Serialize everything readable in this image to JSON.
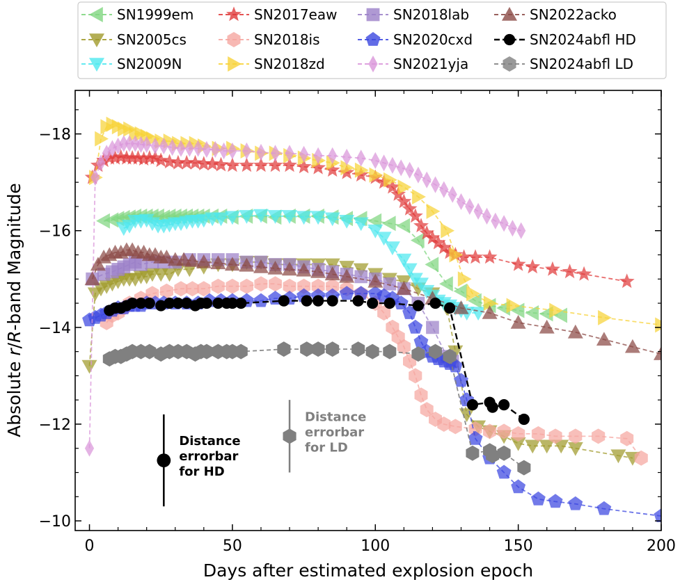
{
  "chart_data": {
    "type": "scatter",
    "title": "",
    "xlabel": "Days after estimated explosion epoch",
    "ylabel_parts": [
      "Absolute ",
      "r",
      "/",
      "R",
      "-band Magnitude"
    ],
    "xlim": [
      -5,
      200
    ],
    "ylim": [
      -9.8,
      -18.9
    ],
    "y_inverted": true,
    "grid": false,
    "legend_placement": "top (above plot, 4 columns)",
    "x_ticks": [
      0,
      50,
      100,
      150,
      200
    ],
    "x_tick_labels": [
      "0",
      "50",
      "100",
      "150",
      "200"
    ],
    "y_ticks": [
      -10,
      -12,
      -14,
      -16,
      -18
    ],
    "y_tick_labels": [
      "−10",
      "−12",
      "−14",
      "−16",
      "−18"
    ],
    "series": [
      {
        "name": "SN1999em",
        "color": "#7fd67f",
        "marker": "triangle-left",
        "x": [
          5,
          8,
          10,
          12,
          14,
          16,
          18,
          20,
          22,
          24,
          26,
          28,
          30,
          32,
          34,
          36,
          38,
          40,
          43,
          46,
          50,
          55,
          60,
          65,
          70,
          75,
          80,
          85,
          90,
          95,
          100,
          105,
          110,
          115,
          120,
          125,
          130,
          135,
          140,
          145,
          150,
          155,
          160,
          165
        ],
        "y": [
          -16.2,
          -16.22,
          -16.25,
          -16.27,
          -16.28,
          -16.3,
          -16.3,
          -16.3,
          -16.3,
          -16.3,
          -16.28,
          -16.3,
          -16.3,
          -16.3,
          -16.3,
          -16.3,
          -16.3,
          -16.3,
          -16.3,
          -16.3,
          -16.28,
          -16.3,
          -16.3,
          -16.28,
          -16.3,
          -16.3,
          -16.3,
          -16.28,
          -16.25,
          -16.25,
          -16.2,
          -16.15,
          -16.1,
          -15.8,
          -15.3,
          -14.9,
          -14.75,
          -14.55,
          -14.45,
          -14.4,
          -14.35,
          -14.3,
          -14.28,
          -14.25
        ]
      },
      {
        "name": "SN2005cs",
        "color": "#a09a2b",
        "marker": "triangle-down",
        "x": [
          0,
          2,
          4,
          6,
          8,
          10,
          12,
          14,
          16,
          18,
          20,
          22,
          25,
          28,
          31,
          35,
          40,
          45,
          50,
          55,
          60,
          65,
          70,
          75,
          80,
          85,
          90,
          95,
          100,
          105,
          110,
          115,
          120,
          125,
          128,
          132,
          136,
          140,
          145,
          150,
          155,
          160,
          165,
          170,
          185,
          190
        ],
        "y": [
          -13.2,
          -14.7,
          -14.8,
          -14.85,
          -14.9,
          -14.95,
          -15.0,
          -15.0,
          -15.0,
          -15.05,
          -15.05,
          -15.1,
          -15.1,
          -15.1,
          -15.2,
          -15.2,
          -15.25,
          -15.3,
          -15.3,
          -15.35,
          -15.35,
          -15.3,
          -15.3,
          -15.3,
          -15.3,
          -15.3,
          -15.25,
          -15.2,
          -15.1,
          -15.0,
          -14.95,
          -14.8,
          -14.7,
          -14.4,
          -13.5,
          -12.2,
          -11.95,
          -11.85,
          -11.75,
          -11.6,
          -11.55,
          -11.55,
          -11.55,
          -11.5,
          -11.35,
          -11.3
        ]
      },
      {
        "name": "SN2009N",
        "color": "#4de8ef",
        "marker": "triangle-down",
        "x": [
          12,
          14,
          16,
          18,
          20,
          22,
          24,
          26,
          28,
          30,
          32,
          34,
          36,
          38,
          40,
          43,
          46,
          50,
          55,
          60,
          65,
          70,
          75,
          80,
          85,
          90,
          95,
          100,
          103,
          106,
          110,
          112,
          114,
          116,
          118,
          120,
          122,
          124,
          126,
          128,
          130,
          132,
          136
        ],
        "y": [
          -16.05,
          -16.1,
          -16.2,
          -16.2,
          -16.22,
          -16.15,
          -16.1,
          -16.1,
          -16.12,
          -16.15,
          -16.15,
          -16.18,
          -16.2,
          -16.2,
          -16.22,
          -16.25,
          -16.25,
          -16.28,
          -16.3,
          -16.32,
          -16.3,
          -16.3,
          -16.28,
          -16.28,
          -16.25,
          -16.2,
          -16.15,
          -16.0,
          -15.85,
          -15.65,
          -15.4,
          -15.2,
          -15.0,
          -14.9,
          -14.75,
          -14.65,
          -14.55,
          -14.5,
          -14.45,
          -14.4,
          -14.35,
          -14.3,
          -14.3
        ]
      },
      {
        "name": "SN2017eaw",
        "color": "#e03a3a",
        "marker": "star",
        "x": [
          1,
          3,
          5,
          7,
          9,
          11,
          13,
          15,
          17,
          19,
          21,
          23,
          25,
          28,
          31,
          34,
          37,
          40,
          43,
          46,
          50,
          55,
          60,
          65,
          70,
          75,
          80,
          85,
          90,
          95,
          100,
          103,
          106,
          108,
          110,
          112,
          114,
          116,
          118,
          120,
          122,
          124,
          126,
          128,
          131,
          135,
          140,
          150,
          155,
          162,
          168,
          173,
          188
        ],
        "y": [
          -17.1,
          -17.35,
          -17.45,
          -17.5,
          -17.5,
          -17.52,
          -17.5,
          -17.5,
          -17.5,
          -17.48,
          -17.5,
          -17.5,
          -17.45,
          -17.42,
          -17.4,
          -17.4,
          -17.4,
          -17.38,
          -17.38,
          -17.36,
          -17.35,
          -17.35,
          -17.35,
          -17.35,
          -17.35,
          -17.32,
          -17.3,
          -17.25,
          -17.2,
          -17.15,
          -17.1,
          -17.0,
          -16.9,
          -16.75,
          -16.6,
          -16.45,
          -16.3,
          -16.1,
          -15.95,
          -15.85,
          -15.75,
          -15.65,
          -15.55,
          -15.5,
          -15.45,
          -15.45,
          -15.45,
          -15.3,
          -15.25,
          -15.2,
          -15.15,
          -15.1,
          -14.95
        ]
      },
      {
        "name": "SN2018is",
        "color": "#f5a6a0",
        "marker": "hexagon",
        "x": [
          6,
          8,
          10,
          12,
          14,
          18,
          22,
          27,
          32,
          36,
          40,
          45,
          50,
          55,
          60,
          65,
          70,
          75,
          80,
          85,
          90,
          95,
          100,
          103,
          106,
          108,
          110,
          112,
          114,
          116,
          118,
          121,
          124,
          128,
          135,
          140,
          145,
          150,
          157,
          163,
          170,
          178,
          188,
          193
        ],
        "y": [
          -14.1,
          -14.25,
          -14.3,
          -14.4,
          -14.5,
          -14.6,
          -14.7,
          -14.75,
          -14.8,
          -14.8,
          -14.8,
          -14.85,
          -14.85,
          -14.85,
          -14.9,
          -14.9,
          -14.85,
          -14.85,
          -14.85,
          -14.85,
          -14.8,
          -14.7,
          -14.5,
          -14.3,
          -14.0,
          -13.8,
          -13.6,
          -13.3,
          -13.0,
          -12.6,
          -12.3,
          -12.1,
          -12.0,
          -11.95,
          -11.9,
          -11.85,
          -11.85,
          -11.8,
          -11.8,
          -11.75,
          -11.75,
          -11.75,
          -11.7,
          -11.3
        ]
      },
      {
        "name": "SN2018zd",
        "color": "#f7d238",
        "marker": "triangle-right",
        "x": [
          2,
          4,
          6,
          8,
          10,
          12,
          14,
          16,
          18,
          20,
          22,
          25,
          28,
          31,
          34,
          37,
          40,
          45,
          50,
          55,
          60,
          65,
          70,
          75,
          80,
          85,
          90,
          95,
          100,
          105,
          110,
          115,
          120,
          125,
          128,
          131,
          134,
          140,
          148,
          163,
          180,
          200
        ],
        "y": [
          -17.1,
          -17.9,
          -18.15,
          -18.2,
          -18.15,
          -18.1,
          -18.1,
          -18.0,
          -18.0,
          -17.95,
          -17.9,
          -17.85,
          -17.85,
          -17.8,
          -17.8,
          -17.8,
          -17.75,
          -17.7,
          -17.7,
          -17.65,
          -17.6,
          -17.6,
          -17.55,
          -17.5,
          -17.45,
          -17.4,
          -17.3,
          -17.25,
          -17.15,
          -17.05,
          -16.9,
          -16.7,
          -16.4,
          -16.0,
          -15.5,
          -15.0,
          -14.7,
          -14.5,
          -14.45,
          -14.35,
          -14.2,
          -14.05
        ]
      },
      {
        "name": "SN2018lab",
        "color": "#9b80c8",
        "marker": "square",
        "x": [
          1,
          5,
          8,
          10,
          12,
          14,
          16,
          18,
          22,
          26,
          30,
          35,
          40,
          45,
          50,
          55,
          60,
          65,
          70,
          75,
          80,
          85,
          90,
          95,
          100,
          105,
          110,
          115,
          120,
          125,
          127
        ],
        "y": [
          -15.0,
          -15.1,
          -15.15,
          -15.2,
          -15.25,
          -15.3,
          -15.35,
          -15.3,
          -15.35,
          -15.35,
          -15.35,
          -15.4,
          -15.4,
          -15.4,
          -15.4,
          -15.35,
          -15.35,
          -15.3,
          -15.3,
          -15.25,
          -15.2,
          -15.15,
          -15.1,
          -15.05,
          -15.0,
          -14.9,
          -14.8,
          -14.5,
          -14.0,
          -13.4,
          -13.3
        ]
      },
      {
        "name": "SN2020cxd",
        "color": "#3b47e0",
        "marker": "pentagon",
        "x": [
          0,
          2,
          4,
          6,
          8,
          10,
          12,
          14,
          16,
          18,
          20,
          23,
          26,
          30,
          34,
          38,
          42,
          46,
          50,
          55,
          60,
          65,
          70,
          75,
          80,
          85,
          90,
          95,
          100,
          103,
          106,
          109,
          112,
          114,
          116,
          118,
          120,
          122,
          124,
          126,
          128,
          130,
          132,
          135,
          140,
          145,
          150,
          157,
          163,
          170,
          180,
          200
        ],
        "y": [
          -14.15,
          -14.2,
          -14.25,
          -14.3,
          -14.35,
          -14.4,
          -14.4,
          -14.45,
          -14.45,
          -14.45,
          -14.5,
          -14.5,
          -14.5,
          -14.5,
          -14.5,
          -14.5,
          -14.55,
          -14.55,
          -14.55,
          -14.55,
          -14.55,
          -14.6,
          -14.6,
          -14.65,
          -14.65,
          -14.65,
          -14.7,
          -14.7,
          -14.7,
          -14.65,
          -14.6,
          -14.5,
          -14.3,
          -14.0,
          -13.7,
          -13.5,
          -13.4,
          -13.35,
          -13.3,
          -13.25,
          -13.2,
          -12.9,
          -12.5,
          -11.7,
          -11.3,
          -11.0,
          -10.7,
          -10.45,
          -10.4,
          -10.35,
          -10.25,
          -10.1
        ]
      },
      {
        "name": "SN2021yja",
        "color": "#d995d9",
        "marker": "thin-diamond",
        "x": [
          0,
          2,
          4,
          6,
          8,
          10,
          12,
          14,
          16,
          18,
          20,
          23,
          26,
          29,
          32,
          35,
          38,
          41,
          44,
          47,
          50,
          55,
          60,
          65,
          70,
          75,
          80,
          85,
          90,
          95,
          100,
          103,
          106,
          109,
          112,
          115,
          118,
          121,
          124,
          127,
          130,
          133,
          136,
          139,
          142,
          145,
          148,
          151
        ],
        "y": [
          -11.5,
          -17.1,
          -17.4,
          -17.6,
          -17.7,
          -17.75,
          -17.8,
          -17.8,
          -17.8,
          -17.78,
          -17.78,
          -17.75,
          -17.75,
          -17.72,
          -17.7,
          -17.7,
          -17.7,
          -17.68,
          -17.68,
          -17.65,
          -17.65,
          -17.65,
          -17.62,
          -17.6,
          -17.6,
          -17.58,
          -17.55,
          -17.55,
          -17.52,
          -17.5,
          -17.45,
          -17.4,
          -17.35,
          -17.3,
          -17.25,
          -17.15,
          -17.05,
          -16.95,
          -16.85,
          -16.75,
          -16.6,
          -16.5,
          -16.4,
          -16.3,
          -16.2,
          -16.15,
          -16.05,
          -16.0
        ]
      },
      {
        "name": "SN2022acko",
        "color": "#8b4a45",
        "marker": "triangle-up",
        "x": [
          1,
          3,
          5,
          7,
          9,
          11,
          13,
          15,
          17,
          19,
          21,
          23,
          25,
          27,
          30,
          33,
          36,
          40,
          45,
          50,
          55,
          60,
          65,
          70,
          75,
          80,
          85,
          90,
          100,
          110,
          120,
          130,
          140,
          150,
          160,
          170,
          180,
          190,
          200
        ],
        "y": [
          -15.0,
          -15.3,
          -15.45,
          -15.5,
          -15.55,
          -15.55,
          -15.6,
          -15.6,
          -15.55,
          -15.55,
          -15.5,
          -15.5,
          -15.45,
          -15.45,
          -15.4,
          -15.4,
          -15.38,
          -15.35,
          -15.33,
          -15.3,
          -15.28,
          -15.25,
          -15.22,
          -15.2,
          -15.18,
          -15.15,
          -15.1,
          -15.05,
          -14.95,
          -14.8,
          -14.6,
          -14.4,
          -14.3,
          -14.1,
          -14.0,
          -13.9,
          -13.75,
          -13.6,
          -13.45
        ]
      },
      {
        "name": "SN2024abfl HD",
        "color": "#000000",
        "marker": "circle",
        "x": [
          7,
          9,
          11,
          13,
          15,
          18,
          21,
          25,
          28,
          31,
          34,
          37,
          39,
          41,
          45,
          48,
          50,
          53,
          68,
          76,
          80,
          85,
          94,
          99,
          105,
          115,
          121,
          126,
          134,
          140,
          141,
          145,
          152
        ],
        "y": [
          -14.35,
          -14.4,
          -14.4,
          -14.45,
          -14.5,
          -14.5,
          -14.5,
          -14.45,
          -14.5,
          -14.5,
          -14.5,
          -14.45,
          -14.5,
          -14.5,
          -14.5,
          -14.5,
          -14.5,
          -14.5,
          -14.55,
          -14.55,
          -14.55,
          -14.55,
          -14.55,
          -14.5,
          -14.5,
          -14.45,
          -14.5,
          -14.4,
          -12.4,
          -12.45,
          -12.35,
          -12.4,
          -12.1
        ]
      },
      {
        "name": "SN2024abfl LD",
        "color": "#808080",
        "marker": "hexagon",
        "x": [
          7,
          9,
          11,
          13,
          15,
          18,
          21,
          25,
          28,
          31,
          34,
          37,
          39,
          41,
          45,
          48,
          50,
          53,
          68,
          76,
          80,
          85,
          94,
          99,
          105,
          115,
          121,
          126,
          134,
          140,
          141,
          145,
          152
        ],
        "y": [
          -13.35,
          -13.4,
          -13.4,
          -13.45,
          -13.5,
          -13.5,
          -13.5,
          -13.45,
          -13.5,
          -13.5,
          -13.5,
          -13.45,
          -13.5,
          -13.5,
          -13.5,
          -13.5,
          -13.5,
          -13.5,
          -13.55,
          -13.55,
          -13.55,
          -13.55,
          -13.55,
          -13.5,
          -13.5,
          -13.45,
          -13.5,
          -13.4,
          -11.4,
          -11.45,
          -11.35,
          -11.4,
          -11.1
        ]
      }
    ],
    "annotations": [
      {
        "name": "errorbar-hd",
        "lines": [
          "Distance",
          "errorbar",
          "for HD"
        ],
        "color": "#000000",
        "x": 26,
        "y": -11.25,
        "yerr": 0.95,
        "marker": "circle"
      },
      {
        "name": "errorbar-ld",
        "lines": [
          "Distance",
          "errorbar",
          "for LD"
        ],
        "color": "#808080",
        "x": 70,
        "y": -11.75,
        "yerr": 0.75,
        "marker": "hexagon"
      }
    ]
  }
}
